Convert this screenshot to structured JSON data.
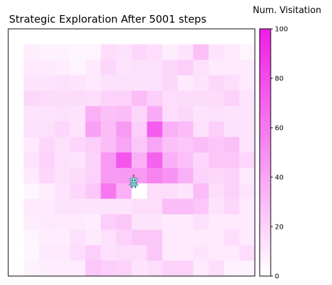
{
  "chart_data": {
    "type": "heatmap",
    "title": "Strategic Exploration After 5001 steps",
    "colorbar": {
      "label": "Num. Visitation",
      "min": 0,
      "max": 100,
      "ticks": [
        0,
        20,
        40,
        60,
        80,
        100
      ],
      "color_low": "#ffffff",
      "color_high": "#f01ee6"
    },
    "grid_size": [
      16,
      16
    ],
    "agent": {
      "row": 8,
      "col": 8,
      "icon": "robot-icon"
    },
    "values": [
      [
        0,
        0,
        0,
        0,
        0,
        0,
        0,
        0,
        0,
        0,
        0,
        0,
        0,
        0,
        0,
        0
      ],
      [
        0,
        8,
        6,
        6,
        4,
        5,
        15,
        13,
        18,
        15,
        8,
        12,
        28,
        12,
        10,
        5
      ],
      [
        0,
        10,
        10,
        8,
        5,
        10,
        18,
        12,
        14,
        14,
        18,
        22,
        14,
        10,
        10,
        10
      ],
      [
        0,
        12,
        12,
        14,
        12,
        10,
        13,
        14,
        13,
        14,
        18,
        10,
        12,
        18,
        15,
        10
      ],
      [
        0,
        18,
        16,
        16,
        16,
        15,
        20,
        20,
        30,
        22,
        15,
        16,
        16,
        16,
        20,
        12
      ],
      [
        0,
        12,
        12,
        14,
        12,
        35,
        28,
        30,
        18,
        38,
        15,
        18,
        12,
        14,
        12,
        12
      ],
      [
        0,
        14,
        14,
        18,
        12,
        42,
        30,
        45,
        22,
        72,
        35,
        30,
        14,
        22,
        14,
        12
      ],
      [
        0,
        10,
        18,
        14,
        18,
        22,
        30,
        40,
        25,
        40,
        28,
        25,
        30,
        25,
        28,
        12
      ],
      [
        0,
        12,
        20,
        14,
        12,
        20,
        45,
        75,
        35,
        70,
        35,
        28,
        18,
        25,
        25,
        18
      ],
      [
        0,
        10,
        18,
        14,
        16,
        20,
        45,
        45,
        45,
        55,
        48,
        35,
        20,
        18,
        20,
        10
      ],
      [
        0,
        4,
        8,
        12,
        18,
        25,
        60,
        35,
        0,
        15,
        15,
        12,
        30,
        15,
        20,
        12
      ],
      [
        0,
        10,
        10,
        12,
        12,
        12,
        12,
        12,
        15,
        15,
        30,
        30,
        25,
        12,
        18,
        10
      ],
      [
        0,
        8,
        10,
        10,
        10,
        8,
        22,
        25,
        12,
        12,
        10,
        10,
        14,
        10,
        10,
        10
      ],
      [
        0,
        5,
        8,
        8,
        14,
        10,
        14,
        20,
        25,
        25,
        10,
        10,
        10,
        10,
        15,
        10
      ],
      [
        0,
        4,
        10,
        10,
        15,
        22,
        14,
        15,
        15,
        25,
        10,
        10,
        12,
        10,
        10,
        15
      ],
      [
        0,
        6,
        8,
        8,
        8,
        25,
        22,
        20,
        12,
        15,
        20,
        20,
        10,
        15,
        6,
        6
      ]
    ]
  }
}
